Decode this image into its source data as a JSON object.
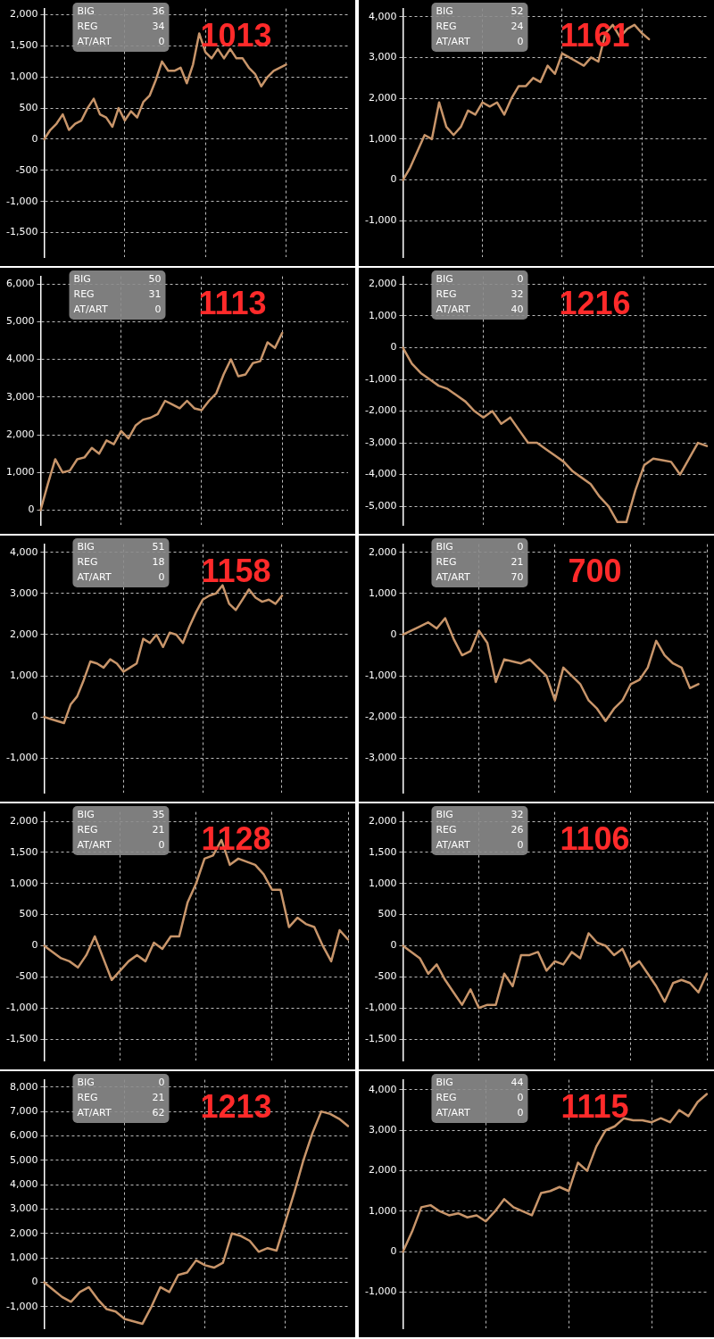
{
  "chart_data": [
    {
      "type": "line",
      "title": "1013",
      "annotations": [
        "BIG",
        "36",
        "REG",
        "34",
        "AT/ART",
        "0"
      ],
      "categories": [
        null,
        null,
        null,
        null,
        null,
        null,
        null,
        null,
        null,
        null,
        null,
        null,
        null,
        null,
        null,
        null,
        null,
        null,
        null,
        null,
        null,
        null,
        null,
        null,
        null,
        null,
        null,
        null,
        null,
        null,
        null,
        null,
        null,
        null,
        null,
        null,
        null,
        null,
        null,
        null,
        null,
        null,
        null,
        null,
        null,
        null,
        null,
        null,
        null,
        null
      ],
      "series": [
        {
          "color": "#c8956a",
          "values": [
            0,
            150,
            250,
            400,
            150,
            250,
            300,
            500,
            650,
            400,
            350,
            200,
            500,
            300,
            450,
            350,
            600,
            700,
            950,
            1250,
            1100,
            1100,
            1150,
            900,
            1200,
            1700,
            1400,
            1300,
            1450,
            1300,
            1450,
            1300,
            1300,
            1150,
            1050,
            850,
            1000,
            1100,
            1150,
            1200,
            null,
            null,
            null,
            null,
            null,
            null,
            null,
            null,
            null,
            null
          ]
        }
      ],
      "ylim": [
        -1900,
        2100
      ],
      "yticks": [
        {
          "value": -1500,
          "label": "-1,500"
        },
        {
          "value": -1000,
          "label": "-1,000"
        },
        -500,
        0,
        500,
        {
          "value": 1000,
          "label": "1,000"
        },
        {
          "value": 1500,
          "label": "1,500"
        },
        {
          "value": 2000,
          "label": "2,000"
        }
      ],
      "grid": true,
      "tick_labels": "y"
    },
    {
      "type": "line",
      "title": "1161",
      "annotations": [
        "BIG",
        "52",
        "REG",
        "24",
        "AT/ART",
        "0"
      ],
      "categories": [
        null,
        null,
        null,
        null,
        null,
        null,
        null,
        null,
        null,
        null,
        null,
        null,
        null,
        null,
        null,
        null,
        null,
        null,
        null,
        null,
        null,
        null,
        null,
        null,
        null,
        null,
        null,
        null,
        null,
        null,
        null,
        null,
        null,
        null,
        null,
        null,
        null,
        null,
        null,
        null,
        null,
        null,
        null
      ],
      "series": [
        {
          "color": "#c8956a",
          "values": [
            0,
            300,
            700,
            1100,
            1000,
            1900,
            1300,
            1100,
            1300,
            1700,
            1600,
            1900,
            1800,
            1900,
            1600,
            2000,
            2300,
            2300,
            2500,
            2400,
            2800,
            2600,
            3100,
            3000,
            2900,
            2800,
            3000,
            2900,
            3600,
            3800,
            3500,
            3700,
            3800,
            3600,
            3450,
            null,
            null,
            null,
            null,
            null,
            null,
            null,
            null
          ]
        }
      ],
      "ylim": [
        -1900,
        4200
      ],
      "yticks": [
        {
          "value": -1000,
          "label": "-1,000"
        },
        0,
        {
          "value": 1000,
          "label": "1,000"
        },
        {
          "value": 2000,
          "label": "2,000"
        },
        {
          "value": 3000,
          "label": "3,000"
        },
        {
          "value": 4000,
          "label": "4,000"
        }
      ],
      "grid": true,
      "tick_labels": "y"
    },
    {
      "type": "line",
      "title": "1113",
      "annotations": [
        "BIG",
        "50",
        "REG",
        "31",
        "AT/ART",
        "0"
      ],
      "categories": [
        null,
        null,
        null,
        null,
        null,
        null,
        null,
        null,
        null,
        null,
        null,
        null,
        null,
        null,
        null,
        null,
        null,
        null,
        null,
        null,
        null,
        null,
        null,
        null,
        null,
        null,
        null,
        null,
        null,
        null,
        null,
        null,
        null,
        null,
        null,
        null,
        null,
        null,
        null,
        null,
        null,
        null,
        null
      ],
      "series": [
        {
          "color": "#c8956a",
          "values": [
            0,
            700,
            1350,
            1000,
            1050,
            1350,
            1400,
            1650,
            1500,
            1850,
            1750,
            2100,
            1900,
            2250,
            2400,
            2450,
            2550,
            2900,
            2800,
            2700,
            2900,
            2700,
            2650,
            2900,
            3100,
            3600,
            4000,
            3550,
            3600,
            3900,
            3950,
            4450,
            4300,
            4700,
            null,
            null,
            null,
            null,
            null,
            null,
            null,
            null,
            null
          ]
        }
      ],
      "ylim": [
        -400,
        6200
      ],
      "yticks": [
        0,
        {
          "value": 1000,
          "label": "1,000"
        },
        {
          "value": 2000,
          "label": "2,000"
        },
        {
          "value": 3000,
          "label": "3,000"
        },
        {
          "value": 4000,
          "label": "4,000"
        },
        {
          "value": 5000,
          "label": "5,000"
        },
        {
          "value": 6000,
          "label": "6,000"
        }
      ],
      "grid": true,
      "tick_labels": "y"
    },
    {
      "type": "line",
      "title": "1216",
      "annotations": [
        "BIG",
        "0",
        "REG",
        "32",
        "AT/ART",
        "40"
      ],
      "categories": [
        null,
        null,
        null,
        null,
        null,
        null,
        null,
        null,
        null,
        null,
        null,
        null,
        null,
        null,
        null,
        null,
        null,
        null,
        null,
        null,
        null,
        null,
        null,
        null,
        null,
        null,
        null,
        null,
        null,
        null,
        null,
        null,
        null,
        null,
        null
      ],
      "series": [
        {
          "color": "#c8956a",
          "values": [
            0,
            -500,
            -800,
            -1000,
            -1200,
            -1300,
            -1500,
            -1700,
            -2000,
            -2200,
            -2000,
            -2400,
            -2200,
            -2600,
            -3000,
            -3000,
            -3200,
            -3400,
            -3600,
            -3900,
            -4100,
            -4300,
            -4700,
            -5000,
            -5500,
            -5500,
            -4500,
            -3700,
            -3500,
            -3550,
            -3600,
            -4000,
            -3500,
            -3000,
            -3100
          ]
        }
      ],
      "ylim": [
        -5600,
        2250
      ],
      "yticks": [
        {
          "value": -5000,
          "label": "-5,000"
        },
        {
          "value": -4000,
          "label": "-4,000"
        },
        {
          "value": -3000,
          "label": "-3,000"
        },
        {
          "value": -2000,
          "label": "-2,000"
        },
        {
          "value": -1000,
          "label": "-1,000"
        },
        0,
        {
          "value": 1000,
          "label": "1,000"
        },
        {
          "value": 2000,
          "label": "2,000"
        }
      ],
      "grid": true,
      "tick_labels": "y"
    },
    {
      "type": "line",
      "title": "1158",
      "annotations": [
        "BIG",
        "51",
        "REG",
        "18",
        "AT/ART",
        "0"
      ],
      "categories": [
        null,
        null,
        null,
        null,
        null,
        null,
        null,
        null,
        null,
        null,
        null,
        null,
        null,
        null,
        null,
        null,
        null,
        null,
        null,
        null,
        null,
        null,
        null,
        null,
        null,
        null,
        null,
        null,
        null,
        null,
        null,
        null,
        null,
        null,
        null,
        null,
        null,
        null,
        null,
        null,
        null,
        null,
        null,
        null,
        null,
        null,
        null
      ],
      "series": [
        {
          "color": "#c8956a",
          "values": [
            0,
            -50,
            -100,
            -150,
            300,
            500,
            900,
            1350,
            1300,
            1200,
            1400,
            1300,
            1100,
            1200,
            1300,
            1900,
            1800,
            2000,
            1700,
            2050,
            2000,
            1800,
            2200,
            2550,
            2850,
            2950,
            3000,
            3200,
            2750,
            2600,
            2850,
            3100,
            2900,
            2800,
            2850,
            2750,
            2950,
            null,
            null,
            null,
            null,
            null,
            null,
            null,
            null,
            null,
            null
          ]
        }
      ],
      "ylim": [
        -1850,
        4200
      ],
      "yticks": [
        {
          "value": -1000,
          "label": "-1,000"
        },
        0,
        {
          "value": 1000,
          "label": "1,000"
        },
        {
          "value": 2000,
          "label": "2,000"
        },
        {
          "value": 3000,
          "label": "3,000"
        },
        {
          "value": 4000,
          "label": "4,000"
        }
      ],
      "grid": true,
      "tick_labels": "y"
    },
    {
      "type": "line",
      "title": "700",
      "annotations": [
        "BIG",
        "0",
        "REG",
        "21",
        "AT/ART",
        "70"
      ],
      "categories": [
        null,
        null,
        null,
        null,
        null,
        null,
        null,
        null,
        null,
        null,
        null,
        null,
        null,
        null,
        null,
        null,
        null,
        null,
        null,
        null,
        null,
        null,
        null,
        null,
        null,
        null,
        null,
        null,
        null,
        null,
        null,
        null,
        null,
        null,
        null,
        null,
        null
      ],
      "series": [
        {
          "color": "#c8956a",
          "values": [
            0,
            100,
            200,
            300,
            150,
            400,
            -100,
            -500,
            -400,
            100,
            -200,
            -1150,
            -600,
            -650,
            -700,
            -600,
            -800,
            -1000,
            -1600,
            -800,
            -1000,
            -1200,
            -1600,
            -1800,
            -2100,
            -1800,
            -1600,
            -1200,
            -1100,
            -800,
            -150,
            -500,
            -700,
            -800,
            -1300,
            -1200,
            null
          ]
        }
      ],
      "ylim": [
        -3850,
        2200
      ],
      "yticks": [
        {
          "value": -3000,
          "label": "-3,000"
        },
        {
          "value": -2000,
          "label": "-2,000"
        },
        {
          "value": -1000,
          "label": "-1,000"
        },
        0,
        {
          "value": 1000,
          "label": "1,000"
        },
        {
          "value": 2000,
          "label": "2,000"
        }
      ],
      "grid": true,
      "tick_labels": "y"
    },
    {
      "type": "line",
      "title": "1128",
      "annotations": [
        "BIG",
        "35",
        "REG",
        "21",
        "AT/ART",
        "0"
      ],
      "categories": [
        null,
        null,
        null,
        null,
        null,
        null,
        null,
        null,
        null,
        null,
        null,
        null,
        null,
        null,
        null,
        null,
        null,
        null,
        null,
        null,
        null,
        null,
        null,
        null,
        null,
        null,
        null,
        null,
        null,
        null,
        null,
        null,
        null,
        null,
        null,
        null,
        null
      ],
      "series": [
        {
          "color": "#c8956a",
          "values": [
            0,
            -100,
            -200,
            -250,
            -350,
            -150,
            150,
            -200,
            -550,
            -400,
            -250,
            -150,
            -250,
            50,
            -50,
            150,
            150,
            700,
            1000,
            1400,
            1450,
            1700,
            1300,
            1400,
            1350,
            1300,
            1150,
            900,
            900,
            300,
            450,
            350,
            300,
            0,
            -250,
            250,
            100
          ]
        }
      ],
      "ylim": [
        -1850,
        2150
      ],
      "yticks": [
        {
          "value": -1500,
          "label": "-1,500"
        },
        {
          "value": -1000,
          "label": "-1,000"
        },
        -500,
        0,
        500,
        {
          "value": 1000,
          "label": "1,000"
        },
        {
          "value": 1500,
          "label": "1,500"
        },
        {
          "value": 2000,
          "label": "2,000"
        }
      ],
      "grid": true,
      "tick_labels": "y"
    },
    {
      "type": "line",
      "title": "1106",
      "annotations": [
        "BIG",
        "32",
        "REG",
        "26",
        "AT/ART",
        "0"
      ],
      "categories": [
        null,
        null,
        null,
        null,
        null,
        null,
        null,
        null,
        null,
        null,
        null,
        null,
        null,
        null,
        null,
        null,
        null,
        null,
        null,
        null,
        null,
        null,
        null,
        null,
        null,
        null,
        null,
        null,
        null,
        null,
        null,
        null,
        null,
        null,
        null,
        null,
        null
      ],
      "series": [
        {
          "color": "#c8956a",
          "values": [
            0,
            -100,
            -200,
            -450,
            -300,
            -550,
            -750,
            -950,
            -700,
            -1000,
            -950,
            -950,
            -450,
            -650,
            -150,
            -150,
            -100,
            -400,
            -250,
            -300,
            -100,
            -200,
            200,
            50,
            0,
            -150,
            -50,
            -350,
            -250,
            -450,
            -650,
            -900,
            -600,
            -550,
            -600,
            -750,
            -450
          ]
        }
      ],
      "ylim": [
        -1850,
        2150
      ],
      "yticks": [
        {
          "value": -1500,
          "label": "-1,500"
        },
        {
          "value": -1000,
          "label": "-1,000"
        },
        -500,
        0,
        500,
        {
          "value": 1000,
          "label": "1,000"
        },
        {
          "value": 1500,
          "label": "1,500"
        },
        {
          "value": 2000,
          "label": "2,000"
        }
      ],
      "grid": true,
      "tick_labels": "y"
    },
    {
      "type": "line",
      "title": "1213",
      "annotations": [
        "BIG",
        "0",
        "REG",
        "21",
        "AT/ART",
        "62"
      ],
      "categories": [
        null,
        null,
        null,
        null,
        null,
        null,
        null,
        null,
        null,
        null,
        null,
        null,
        null,
        null,
        null,
        null,
        null,
        null,
        null,
        null,
        null,
        null,
        null,
        null,
        null,
        null,
        null,
        null,
        null,
        null,
        null,
        null,
        null,
        null,
        null
      ],
      "series": [
        {
          "color": "#c8956a",
          "values": [
            0,
            -300,
            -600,
            -800,
            -400,
            -200,
            -700,
            -1100,
            -1200,
            -1500,
            -1600,
            -1700,
            -1000,
            -200,
            -400,
            300,
            400,
            900,
            700,
            600,
            800,
            2000,
            1900,
            1700,
            1250,
            1400,
            1300,
            2500,
            3700,
            5000,
            6100,
            7000,
            6900,
            6700,
            6400
          ]
        }
      ],
      "ylim": [
        -1900,
        8300
      ],
      "yticks": [
        {
          "value": -1000,
          "label": "-1,000"
        },
        0,
        {
          "value": 1000,
          "label": "1,000"
        },
        {
          "value": 2000,
          "label": "2,000"
        },
        {
          "value": 3000,
          "label": "3,000"
        },
        {
          "value": 4000,
          "label": "4,000"
        },
        {
          "value": 5000,
          "label": "5,000"
        },
        {
          "value": 6000,
          "label": "6,000"
        },
        {
          "value": 7000,
          "label": "7,000"
        },
        {
          "value": 8000,
          "label": "8,000"
        }
      ],
      "grid": true,
      "tick_labels": "y"
    },
    {
      "type": "line",
      "title": "1115",
      "annotations": [
        "BIG",
        "44",
        "REG",
        "0",
        "AT/ART",
        "0"
      ],
      "categories": [
        null,
        null,
        null,
        null,
        null,
        null,
        null,
        null,
        null,
        null,
        null,
        null,
        null,
        null,
        null,
        null,
        null,
        null,
        null,
        null,
        null,
        null,
        null,
        null,
        null,
        null,
        null,
        null,
        null,
        null,
        null,
        null,
        null,
        null
      ],
      "series": [
        {
          "color": "#c8956a",
          "values": [
            0,
            500,
            1100,
            1150,
            1000,
            900,
            950,
            850,
            900,
            750,
            1000,
            1300,
            1100,
            1000,
            900,
            1450,
            1500,
            1600,
            1500,
            2200,
            2000,
            2600,
            3000,
            3100,
            3300,
            3250,
            3250,
            3200,
            3300,
            3200,
            3500,
            3350,
            3700,
            3900
          ]
        }
      ],
      "ylim": [
        -1900,
        4250
      ],
      "yticks": [
        {
          "value": -1000,
          "label": "-1,000"
        },
        0,
        {
          "value": 1000,
          "label": "1,000"
        },
        {
          "value": 2000,
          "label": "2,000"
        },
        {
          "value": 3000,
          "label": "3,000"
        },
        {
          "value": 4000,
          "label": "4,000"
        }
      ],
      "grid": true,
      "tick_labels": "y"
    }
  ]
}
